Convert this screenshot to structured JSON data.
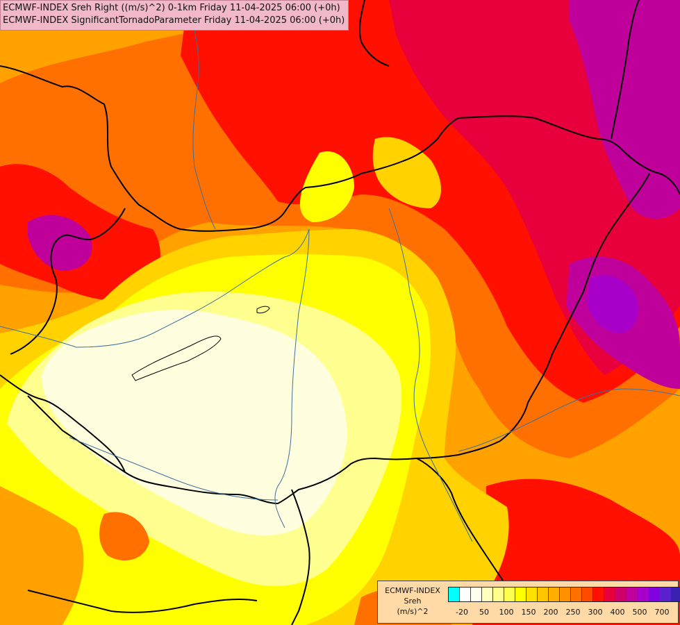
{
  "header": {
    "line1": "ECMWF-INDEX Sreh Right ((m/s)^2) 0-1km Friday 11-04-2025 06:00 (+0h)",
    "line2": "ECMWF-INDEX SignificantTornadoParameter Friday 11-04-2025 06:00 (+0h)"
  },
  "legend": {
    "title1": "ECMWF-INDEX",
    "title2": "Sreh",
    "title3": "(m/s)^2",
    "colors": [
      "#00ffff",
      "#ffffff",
      "#fffff0",
      "#ffffc0",
      "#ffff90",
      "#ffff50",
      "#ffff00",
      "#ffe100",
      "#ffc600",
      "#ffad00",
      "#ff9000",
      "#ff7000",
      "#ff4a00",
      "#ff1000",
      "#e8003c",
      "#d0006a",
      "#c0009a",
      "#a800c8",
      "#8000e0",
      "#5a20d0",
      "#3a20b0",
      "#16168c",
      "#000080"
    ],
    "ticks": [
      "-20",
      "50",
      "100",
      "150",
      "200",
      "250",
      "300",
      "400",
      "500",
      "700"
    ]
  },
  "map": {
    "palette": {
      "pale": "#ffffe0",
      "lightyellow": "#ffff90",
      "yellow": "#ffff00",
      "gold": "#ffd200",
      "orange": "#ffa200",
      "darkorange": "#ff7000",
      "redorange": "#ff4a00",
      "red": "#ff1000",
      "crimson": "#e8003c",
      "magenta": "#c0009a",
      "purple": "#a800c8",
      "violet": "#8000e0"
    }
  }
}
